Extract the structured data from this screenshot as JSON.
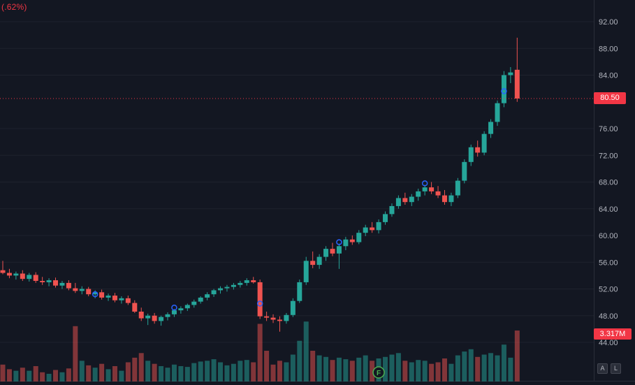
{
  "legend": {
    "change_text": "(.62%)"
  },
  "buttons": {
    "auto": "A",
    "log": "L"
  },
  "colors": {
    "background": "#131722",
    "up": "#26a69a",
    "down": "#ef5350",
    "vol_up": "rgba(38,166,154,0.5)",
    "vol_down": "rgba(239,83,80,0.5)",
    "accent_red": "#f23645",
    "axis_text": "#b2b5be",
    "grid": "#1e222d",
    "separator": "#2a2e39",
    "marker_blue": "#2962ff",
    "event_green": "#4caf50"
  },
  "chart_data": {
    "type": "candlestick",
    "note": "candles are [open, high, low, close, volume_millions]",
    "price_line": {
      "value": 80.5,
      "label": "80.50"
    },
    "volume_label": {
      "text": "3.317M"
    },
    "legend_fragment": "(.62%)",
    "y_ticks": {
      "values": [
        92,
        88,
        84,
        76,
        72,
        68,
        64,
        60,
        56,
        52,
        48,
        44
      ],
      "labels": [
        "92.00",
        "88.00",
        "84.00",
        "76.00",
        "72.00",
        "68.00",
        "64.00",
        "60.00",
        "56.00",
        "52.00",
        "48.00",
        "44.00"
      ]
    },
    "candles": [
      [
        54.8,
        56.2,
        54.2,
        54.4,
        1.1
      ],
      [
        54.4,
        55.0,
        53.6,
        54.0,
        0.8
      ],
      [
        54.0,
        54.6,
        53.4,
        54.3,
        0.7
      ],
      [
        54.3,
        54.8,
        53.2,
        53.5,
        0.9
      ],
      [
        53.5,
        54.4,
        53.1,
        54.1,
        0.7
      ],
      [
        54.1,
        54.5,
        52.9,
        53.2,
        1.0
      ],
      [
        53.2,
        53.8,
        52.6,
        53.0,
        0.6
      ],
      [
        53.0,
        53.6,
        52.4,
        53.3,
        0.5
      ],
      [
        53.3,
        53.7,
        52.2,
        52.5,
        0.75
      ],
      [
        52.5,
        53.2,
        52.0,
        52.9,
        0.6
      ],
      [
        52.9,
        53.3,
        51.8,
        52.1,
        0.85
      ],
      [
        52.1,
        52.9,
        51.4,
        51.7,
        3.6
      ],
      [
        51.7,
        52.4,
        51.2,
        52.0,
        1.35
      ],
      [
        52.0,
        52.3,
        50.9,
        51.2,
        1.05
      ],
      [
        51.2,
        51.8,
        50.6,
        51.5,
        0.9
      ],
      [
        51.5,
        51.9,
        50.4,
        50.7,
        1.15
      ],
      [
        50.7,
        51.3,
        50.2,
        51.0,
        0.8
      ],
      [
        51.0,
        51.4,
        50.0,
        50.3,
        1.0
      ],
      [
        50.3,
        50.9,
        49.8,
        50.6,
        0.7
      ],
      [
        50.6,
        51.0,
        49.6,
        49.9,
        1.25
      ],
      [
        49.9,
        50.3,
        48.4,
        48.6,
        1.55
      ],
      [
        48.6,
        49.2,
        47.2,
        47.6,
        1.85
      ],
      [
        47.6,
        48.3,
        46.6,
        48.0,
        1.35
      ],
      [
        48.0,
        48.4,
        46.8,
        47.2,
        1.15
      ],
      [
        47.2,
        48.0,
        46.5,
        47.8,
        1.0
      ],
      [
        47.8,
        48.5,
        47.3,
        48.2,
        0.9
      ],
      [
        48.2,
        49.0,
        47.8,
        48.8,
        1.1
      ],
      [
        48.8,
        49.4,
        48.3,
        49.1,
        1.0
      ],
      [
        49.1,
        49.8,
        48.7,
        49.6,
        0.95
      ],
      [
        49.6,
        50.4,
        49.2,
        50.1,
        1.2
      ],
      [
        50.1,
        50.9,
        49.8,
        50.7,
        1.3
      ],
      [
        50.7,
        51.5,
        50.3,
        51.2,
        1.35
      ],
      [
        51.2,
        52.0,
        50.8,
        51.8,
        1.45
      ],
      [
        51.8,
        52.4,
        51.3,
        52.1,
        1.25
      ],
      [
        52.1,
        52.6,
        51.6,
        52.3,
        1.05
      ],
      [
        52.3,
        52.9,
        51.9,
        52.6,
        1.15
      ],
      [
        52.6,
        53.2,
        52.2,
        52.9,
        1.35
      ],
      [
        52.9,
        53.6,
        52.5,
        53.3,
        1.4
      ],
      [
        53.3,
        53.8,
        52.8,
        53.0,
        1.25
      ],
      [
        53.0,
        53.4,
        47.5,
        47.9,
        3.75
      ],
      [
        47.9,
        48.6,
        47.2,
        47.7,
        2.0
      ],
      [
        47.7,
        48.2,
        46.9,
        47.4,
        1.1
      ],
      [
        47.4,
        47.9,
        45.6,
        47.2,
        1.35
      ],
      [
        47.2,
        48.4,
        46.8,
        48.1,
        1.25
      ],
      [
        48.1,
        50.6,
        47.8,
        50.2,
        1.75
      ],
      [
        50.2,
        53.4,
        49.9,
        53.0,
        2.65
      ],
      [
        53.0,
        56.8,
        52.6,
        56.2,
        3.9
      ],
      [
        56.2,
        57.6,
        55.1,
        55.6,
        2.0
      ],
      [
        55.6,
        57.2,
        55.0,
        56.8,
        1.7
      ],
      [
        56.8,
        58.4,
        56.2,
        58.0,
        1.6
      ],
      [
        58.0,
        58.9,
        56.9,
        57.3,
        1.4
      ],
      [
        57.3,
        58.8,
        55.0,
        58.4,
        1.55
      ],
      [
        58.4,
        59.8,
        57.8,
        59.4,
        1.45
      ],
      [
        59.4,
        60.0,
        58.6,
        59.0,
        1.35
      ],
      [
        59.0,
        60.8,
        58.7,
        60.4,
        1.55
      ],
      [
        60.4,
        61.6,
        59.9,
        61.2,
        1.7
      ],
      [
        61.2,
        62.0,
        60.4,
        60.8,
        1.35
      ],
      [
        60.8,
        62.4,
        60.3,
        62.0,
        1.5
      ],
      [
        62.0,
        63.6,
        61.6,
        63.2,
        1.6
      ],
      [
        63.2,
        64.8,
        62.8,
        64.4,
        1.75
      ],
      [
        64.4,
        66.0,
        64.0,
        65.6,
        1.85
      ],
      [
        65.6,
        66.4,
        64.6,
        65.0,
        1.35
      ],
      [
        65.0,
        66.2,
        64.4,
        65.8,
        1.25
      ],
      [
        65.8,
        67.0,
        65.2,
        66.6,
        1.4
      ],
      [
        66.6,
        67.6,
        66.0,
        67.2,
        1.35
      ],
      [
        67.2,
        68.0,
        66.2,
        66.6,
        1.15
      ],
      [
        66.6,
        67.4,
        65.6,
        66.0,
        1.25
      ],
      [
        66.0,
        66.8,
        64.6,
        65.0,
        1.5
      ],
      [
        65.0,
        66.4,
        64.4,
        66.0,
        1.15
      ],
      [
        66.0,
        68.6,
        65.6,
        68.2,
        1.7
      ],
      [
        68.2,
        71.4,
        67.8,
        71.0,
        1.95
      ],
      [
        71.0,
        73.6,
        70.4,
        73.2,
        2.1
      ],
      [
        73.2,
        74.2,
        71.8,
        72.4,
        1.6
      ],
      [
        72.4,
        75.6,
        72.0,
        75.2,
        1.75
      ],
      [
        75.2,
        77.4,
        74.6,
        77.0,
        1.85
      ],
      [
        77.0,
        80.2,
        76.4,
        79.8,
        1.7
      ],
      [
        79.8,
        84.6,
        79.2,
        84.0,
        2.4
      ],
      [
        84.0,
        85.2,
        82.8,
        84.4,
        1.55
      ],
      [
        84.8,
        89.6,
        80.0,
        80.5,
        3.317
      ]
    ],
    "markers": [
      {
        "index": 14,
        "price": 51.2
      },
      {
        "index": 26,
        "price": 49.2
      },
      {
        "index": 39,
        "price": 49.8
      },
      {
        "index": 51,
        "price": 59.0
      },
      {
        "index": 64,
        "price": 67.8
      },
      {
        "index": 76,
        "price": 81.6
      }
    ],
    "event_marker": {
      "index": 57,
      "label": "F"
    }
  }
}
